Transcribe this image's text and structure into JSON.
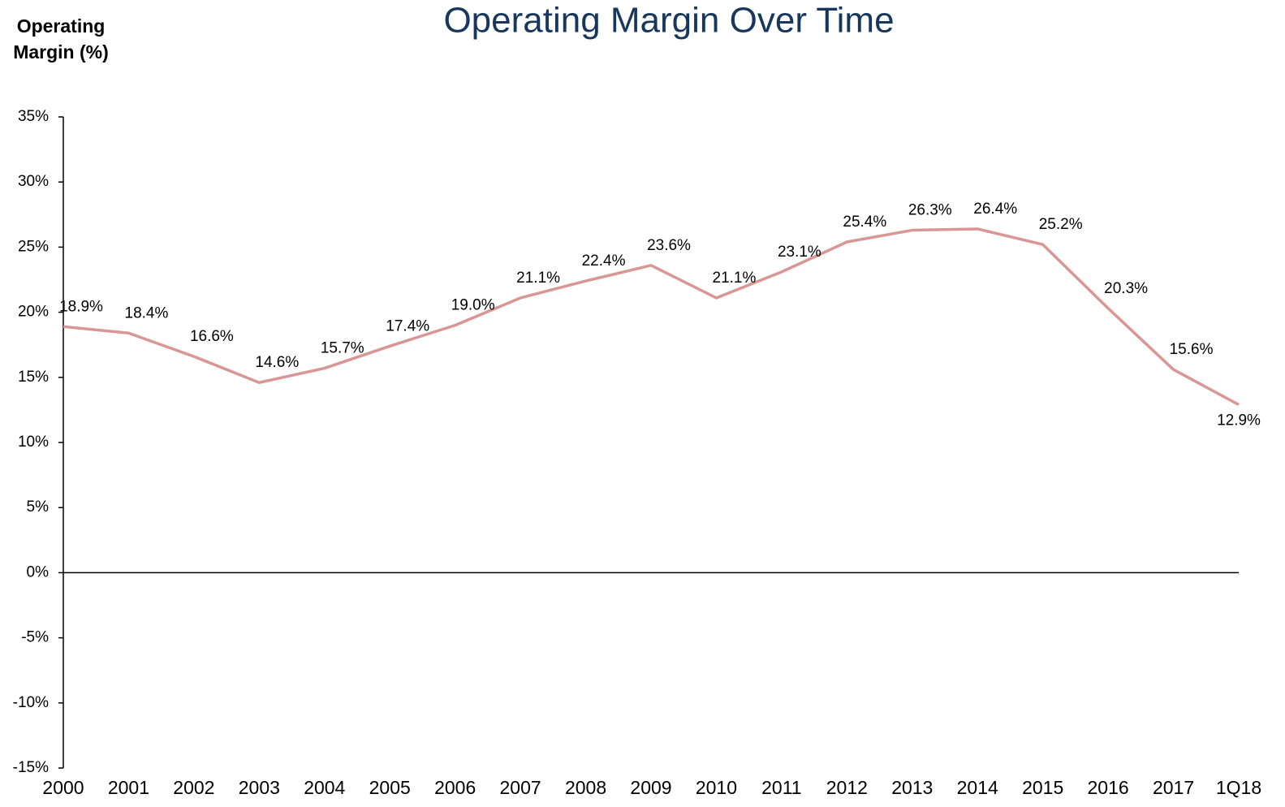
{
  "chart_data": {
    "type": "line",
    "title": "Operating Margin Over Time",
    "y_label": "Operating Margin (%)",
    "categories": [
      "2000",
      "2001",
      "2002",
      "2003",
      "2004",
      "2005",
      "2006",
      "2007",
      "2008",
      "2009",
      "2010",
      "2011",
      "2012",
      "2013",
      "2014",
      "2015",
      "2016",
      "2017",
      "1Q18"
    ],
    "values": [
      18.9,
      18.4,
      16.6,
      14.6,
      15.7,
      17.4,
      19.0,
      21.1,
      22.4,
      23.6,
      21.1,
      23.1,
      25.4,
      26.3,
      26.4,
      25.2,
      20.3,
      15.6,
      12.9
    ],
    "value_labels": [
      "18.9%",
      "18.4%",
      "16.6%",
      "14.6%",
      "15.7%",
      "17.4%",
      "19.0%",
      "21.1%",
      "22.4%",
      "23.6%",
      "21.1%",
      "23.1%",
      "25.4%",
      "26.3%",
      "26.4%",
      "25.2%",
      "20.3%",
      "15.6%",
      "12.9%"
    ],
    "color": "#d99694",
    "ylim": [
      -15,
      35
    ],
    "yticks": [
      {
        "value": -15,
        "label": "-15%"
      },
      {
        "value": -10,
        "label": "-10%"
      },
      {
        "value": -5,
        "label": "-5%"
      },
      {
        "value": 0,
        "label": "0%"
      },
      {
        "value": 5,
        "label": "5%"
      },
      {
        "value": 10,
        "label": "10%"
      },
      {
        "value": 15,
        "label": "15%"
      },
      {
        "value": 20,
        "label": "20%"
      },
      {
        "value": 25,
        "label": "25%"
      },
      {
        "value": 30,
        "label": "30%"
      },
      {
        "value": 35,
        "label": "35%"
      }
    ],
    "grid": false
  }
}
